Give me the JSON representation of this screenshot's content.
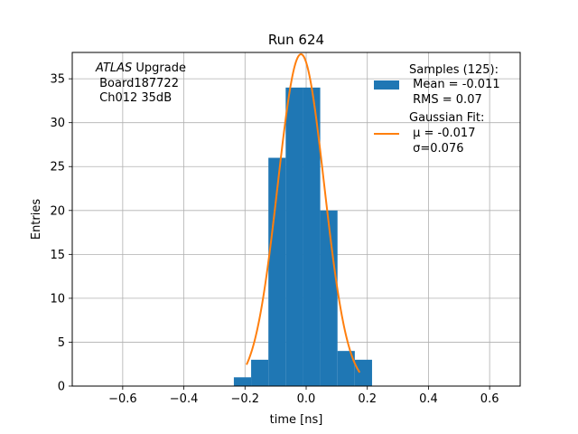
{
  "chart_data": {
    "type": "bar",
    "title": "Run 624",
    "xlabel": "time [ns]",
    "ylabel": "Entries",
    "xlim": [
      -0.765,
      0.7
    ],
    "ylim": [
      0,
      38
    ],
    "xticks": [
      -0.6,
      -0.4,
      -0.2,
      0.0,
      0.2,
      0.4,
      0.6
    ],
    "xtick_labels": [
      "−0.6",
      "−0.4",
      "−0.2",
      "0.0",
      "0.2",
      "0.4",
      "0.6"
    ],
    "yticks": [
      0,
      5,
      10,
      15,
      20,
      25,
      30,
      35
    ],
    "ytick_labels": [
      "0",
      "5",
      "10",
      "15",
      "20",
      "25",
      "30",
      "35"
    ],
    "grid": true,
    "histogram": {
      "name": "Samples (125):",
      "color": "#1f77b4",
      "bin_edges": [
        -0.2365,
        -0.18,
        -0.1235,
        -0.067,
        -0.0105,
        0.046,
        0.1025,
        0.159,
        0.2155
      ],
      "counts": [
        1,
        3,
        26,
        34,
        34,
        20,
        4,
        3
      ]
    },
    "fit": {
      "name": "Gaussian Fit:",
      "color": "#ff7f0e",
      "x_range": [
        -0.195,
        0.175
      ],
      "mu": -0.017,
      "sigma": 0.076,
      "amplitude": 37.8
    },
    "annotation": {
      "line1_italic": "ATLAS",
      "line1_rest": " Upgrade",
      "line2": " Board187722",
      "line3": " Ch012 35dB"
    },
    "legend": {
      "placement": "top-right",
      "samples_lines": [
        "Samples (125):",
        " Mean = -0.011",
        " RMS = 0.07"
      ],
      "fit_lines": [
        "Gaussian Fit:",
        " μ = -0.017",
        " σ=0.076"
      ]
    }
  }
}
